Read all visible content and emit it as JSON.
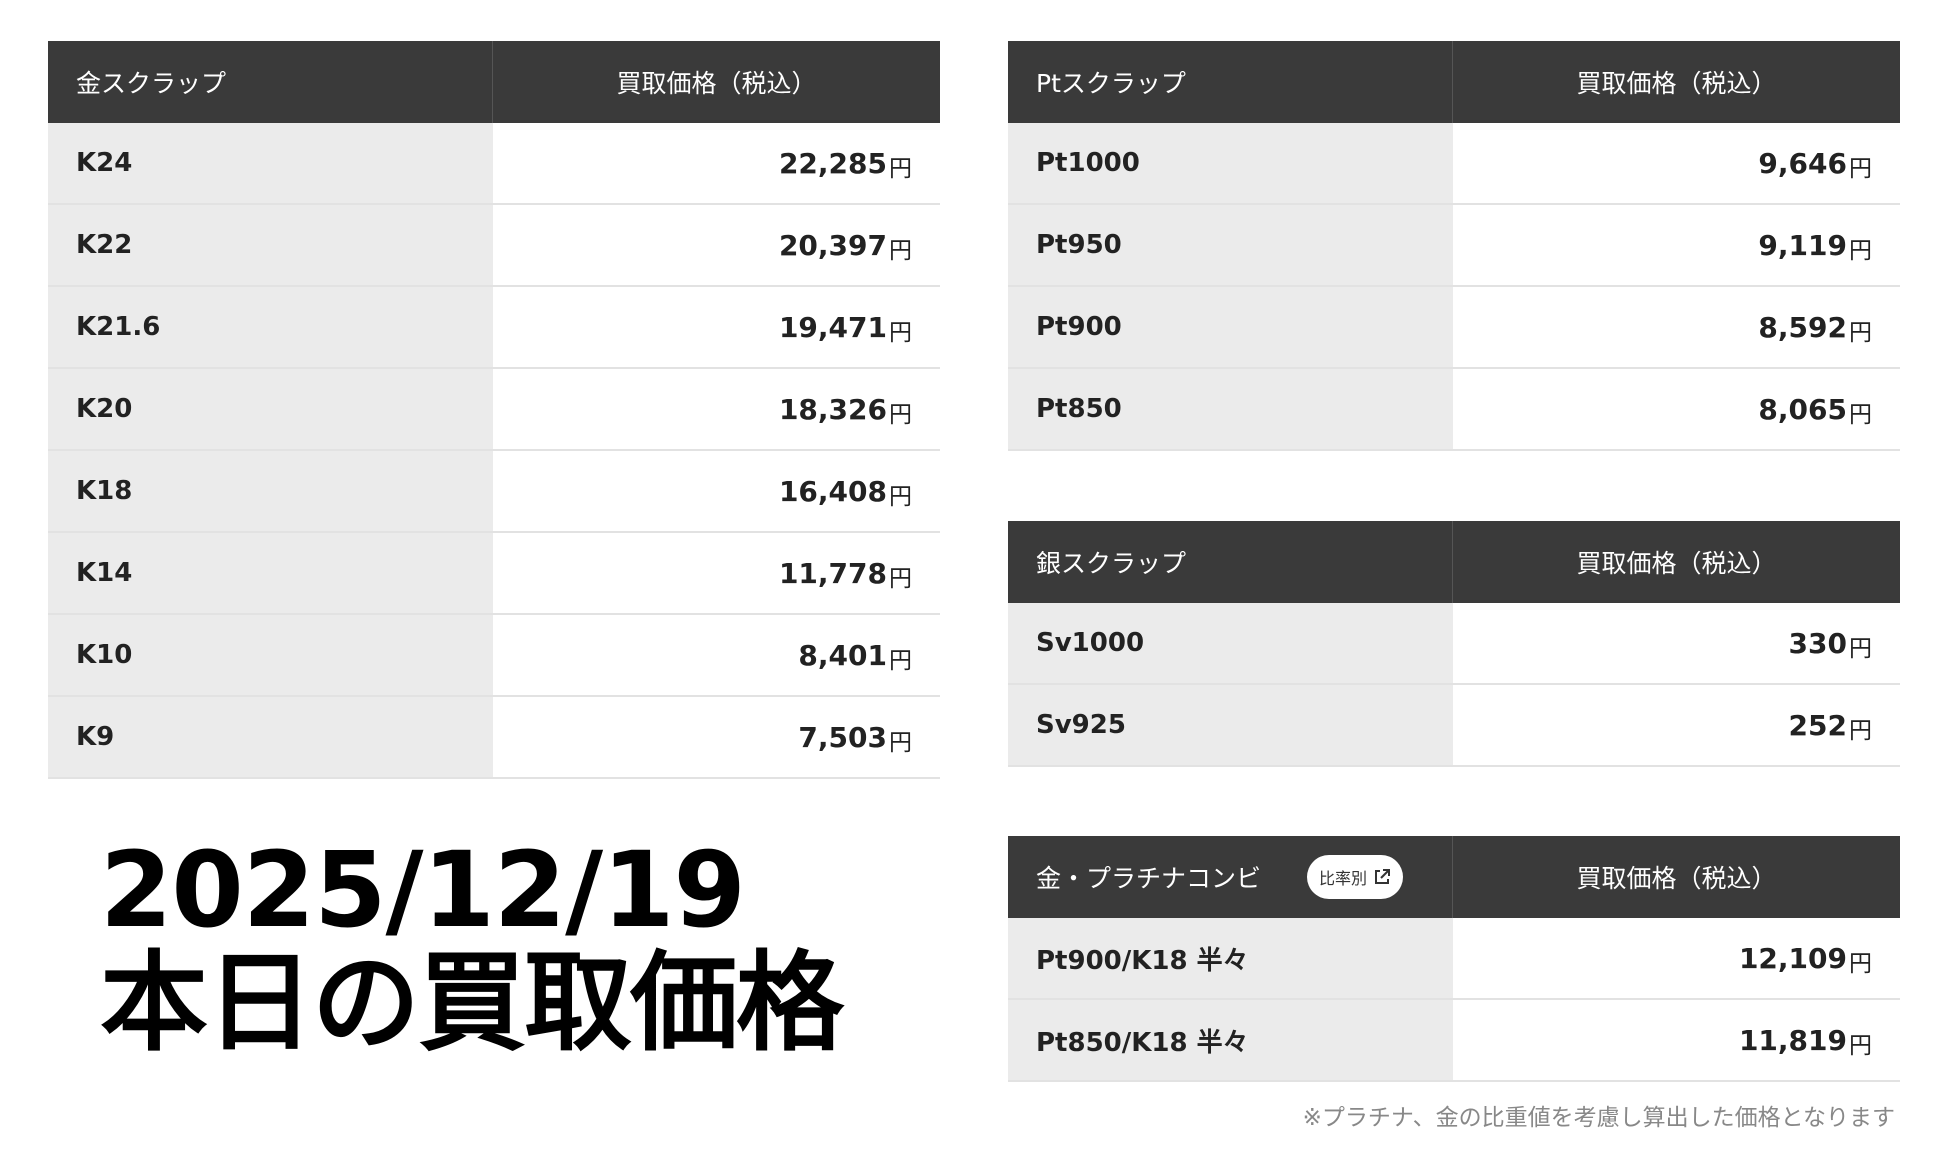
{
  "gold_table": {
    "header_name": "金スクラップ",
    "header_price": "買取価格（税込）",
    "rows": [
      {
        "name": "K24",
        "price": "22,285",
        "unit": "円"
      },
      {
        "name": "K22",
        "price": "20,397",
        "unit": "円"
      },
      {
        "name": "K21.6",
        "price": "19,471",
        "unit": "円"
      },
      {
        "name": "K20",
        "price": "18,326",
        "unit": "円"
      },
      {
        "name": "K18",
        "price": "16,408",
        "unit": "円"
      },
      {
        "name": "K14",
        "price": "11,778",
        "unit": "円"
      },
      {
        "name": "K10",
        "price": "8,401",
        "unit": "円"
      },
      {
        "name": "K9",
        "price": "7,503",
        "unit": "円"
      }
    ]
  },
  "platinum_table": {
    "header_name": "Ptスクラップ",
    "header_price": "買取価格（税込）",
    "rows": [
      {
        "name": "Pt1000",
        "price": "9,646",
        "unit": "円"
      },
      {
        "name": "Pt950",
        "price": "9,119",
        "unit": "円"
      },
      {
        "name": "Pt900",
        "price": "8,592",
        "unit": "円"
      },
      {
        "name": "Pt850",
        "price": "8,065",
        "unit": "円"
      }
    ]
  },
  "silver_table": {
    "header_name": "銀スクラップ",
    "header_price": "買取価格（税込）",
    "rows": [
      {
        "name": "Sv1000",
        "price": "330",
        "unit": "円"
      },
      {
        "name": "Sv925",
        "price": "252",
        "unit": "円"
      }
    ]
  },
  "combi_table": {
    "header_name": "金・プラチナコンビ",
    "badge_label": "比率別",
    "header_price": "買取価格（税込）",
    "rows": [
      {
        "name": "Pt900/K18 半々",
        "price": "12,109",
        "unit": "円"
      },
      {
        "name": "Pt850/K18 半々",
        "price": "11,819",
        "unit": "円"
      }
    ]
  },
  "headline": {
    "date": "2025/12/19",
    "title": "本日の買取価格"
  },
  "footnote": "※プラチナ、金の比重値を考慮し算出した価格となります"
}
